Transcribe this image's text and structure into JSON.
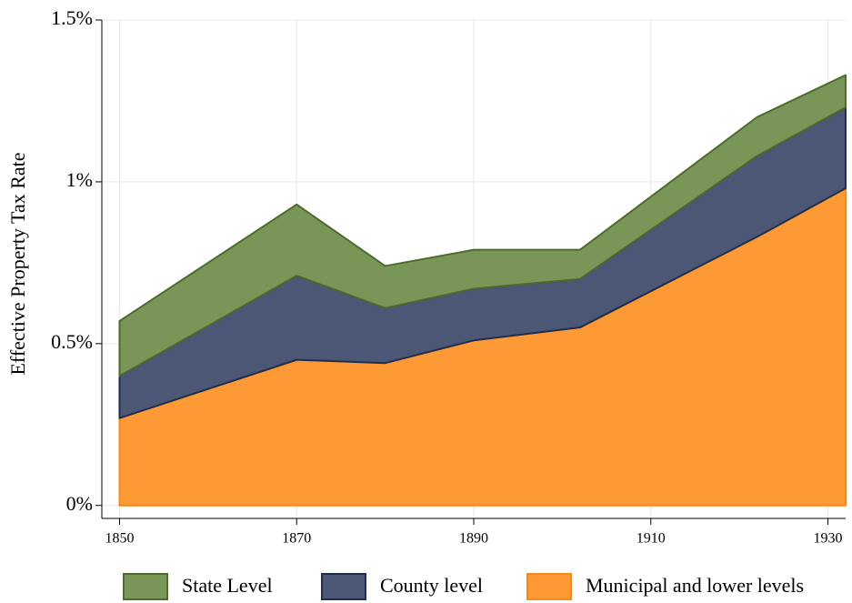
{
  "chart_data": {
    "type": "stacked-area",
    "ylabel": "Effective Property Tax Rate",
    "x": [
      1850,
      1870,
      1880,
      1890,
      1902,
      1922,
      1932
    ],
    "series": [
      {
        "name": "State Level",
        "color": "#7a9558",
        "values": [
          0.17,
          0.22,
          0.13,
          0.12,
          0.09,
          0.12,
          0.1
        ]
      },
      {
        "name": "County level",
        "color": "#4b5775",
        "values": [
          0.13,
          0.26,
          0.17,
          0.16,
          0.15,
          0.25,
          0.25
        ]
      },
      {
        "name": "Municipal and lower levels",
        "color": "#fd9a35",
        "values": [
          0.27,
          0.45,
          0.44,
          0.51,
          0.55,
          0.83,
          0.98
        ]
      }
    ],
    "xlim": [
      1848,
      1932
    ],
    "xticks": [
      1850,
      1870,
      1890,
      1910,
      1930
    ],
    "ylim": [
      -0.04,
      1.5
    ],
    "yticks": [
      {
        "value": 0,
        "label": "0%"
      },
      {
        "value": 0.5,
        "label": "0.5%"
      },
      {
        "value": 1,
        "label": "1%"
      },
      {
        "value": 1.5,
        "label": "1.5%"
      }
    ],
    "grid": true
  }
}
